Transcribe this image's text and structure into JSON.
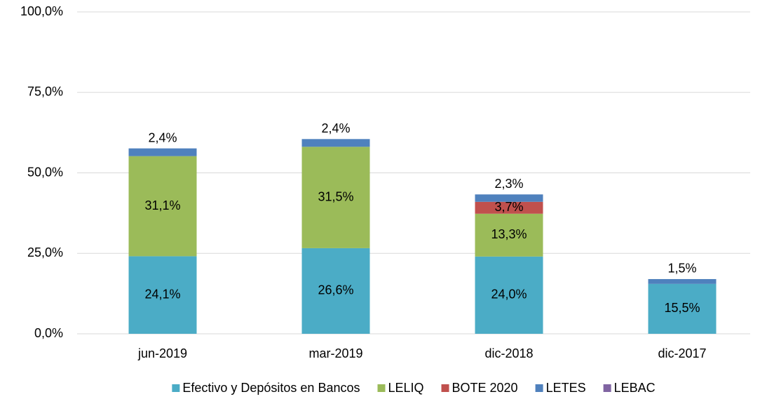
{
  "chart_data": {
    "type": "stacked_bar",
    "categories": [
      "jun-2019",
      "mar-2019",
      "dic-2018",
      "dic-2017"
    ],
    "series": [
      {
        "name": "Efectivo y Depósitos en Bancos",
        "color": "#4bacc6",
        "values": [
          24.1,
          26.6,
          24.0,
          15.5
        ],
        "value_labels": [
          "24,1%",
          "26,6%",
          "24,0%",
          "15,5%"
        ]
      },
      {
        "name": "LELIQ",
        "color": "#9bbb59",
        "values": [
          31.1,
          31.5,
          13.3,
          null
        ],
        "value_labels": [
          "31,1%",
          "31,5%",
          "13,3%",
          null
        ]
      },
      {
        "name": "BOTE 2020",
        "color": "#c0504d",
        "values": [
          null,
          null,
          3.7,
          null
        ],
        "value_labels": [
          null,
          null,
          "3,7%",
          null
        ]
      },
      {
        "name": "LETES",
        "color": "#4f81bd",
        "values": [
          2.4,
          2.4,
          2.3,
          1.5
        ],
        "value_labels": [
          "2,4%",
          "2,4%",
          "2,3%",
          "1,5%"
        ]
      },
      {
        "name": "LEBAC",
        "color": "#8064a2",
        "values": [
          null,
          null,
          null,
          null
        ]
      }
    ],
    "ylim": [
      0,
      100
    ],
    "yticks": [
      {
        "value": 0,
        "label": "0,0%"
      },
      {
        "value": 25,
        "label": "25,0%"
      },
      {
        "value": 50,
        "label": "50,0%"
      },
      {
        "value": 75,
        "label": "75,0%"
      },
      {
        "value": 100,
        "label": "100,0%"
      }
    ],
    "grid": true,
    "legend": "bottom"
  }
}
